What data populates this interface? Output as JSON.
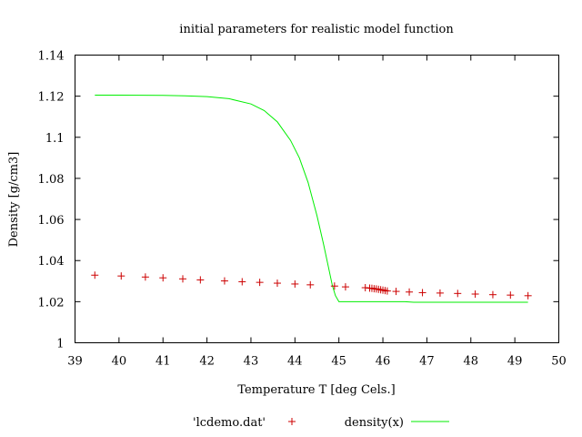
{
  "chart_data": {
    "type": "scatter",
    "title": "initial parameters for realistic model function",
    "xlabel": "Temperature T  [deg Cels.]",
    "ylabel": "Density [g/cm3]",
    "xlim": [
      39,
      50
    ],
    "ylim": [
      1,
      1.14
    ],
    "x_ticks": [
      "39",
      "40",
      "41",
      "42",
      "43",
      "44",
      "45",
      "46",
      "47",
      "48",
      "49",
      "50"
    ],
    "y_ticks": [
      "1",
      "1.02",
      "1.04",
      "1.06",
      "1.08",
      "1.1",
      "1.12",
      "1.14"
    ],
    "grid": false,
    "legend_position": "bottom",
    "series": [
      {
        "name": "'lcdemo.dat'",
        "kind": "points",
        "marker": "plus",
        "color": "#cc0000",
        "x": [
          39.45,
          40.05,
          40.6,
          41.0,
          41.45,
          41.85,
          42.4,
          42.8,
          43.2,
          43.6,
          44.0,
          44.35,
          44.9,
          45.15,
          45.6,
          45.7,
          45.75,
          45.8,
          45.85,
          45.9,
          45.95,
          46.0,
          46.05,
          46.1,
          46.3,
          46.6,
          46.9,
          47.3,
          47.7,
          48.1,
          48.5,
          48.9,
          49.3
        ],
        "y": [
          1.0329,
          1.0325,
          1.032,
          1.0316,
          1.0311,
          1.0306,
          1.0301,
          1.0297,
          1.0294,
          1.029,
          1.0286,
          1.0282,
          1.0276,
          1.0272,
          1.0268,
          1.0266,
          1.0265,
          1.0263,
          1.0262,
          1.026,
          1.0258,
          1.0256,
          1.0254,
          1.0252,
          1.025,
          1.0247,
          1.0244,
          1.0242,
          1.024,
          1.0237,
          1.0234,
          1.0232,
          1.0229
        ]
      },
      {
        "name": "density(x)",
        "kind": "line",
        "color": "#00ee00",
        "x": [
          39.45,
          40,
          41,
          41.5,
          42,
          42.5,
          43,
          43.3,
          43.6,
          43.9,
          44.1,
          44.3,
          44.5,
          44.65,
          44.75,
          44.85,
          44.92,
          45.0,
          45.5,
          46.0,
          46.5,
          46.7,
          47.0,
          48.0,
          49.3
        ],
        "y": [
          1.1205,
          1.1205,
          1.1204,
          1.1202,
          1.1198,
          1.1188,
          1.1162,
          1.113,
          1.1075,
          1.0985,
          1.09,
          1.078,
          1.062,
          1.048,
          1.038,
          1.028,
          1.023,
          1.02,
          1.02,
          1.02,
          1.02,
          1.0197,
          1.0197,
          1.0197,
          1.0197
        ]
      }
    ]
  }
}
